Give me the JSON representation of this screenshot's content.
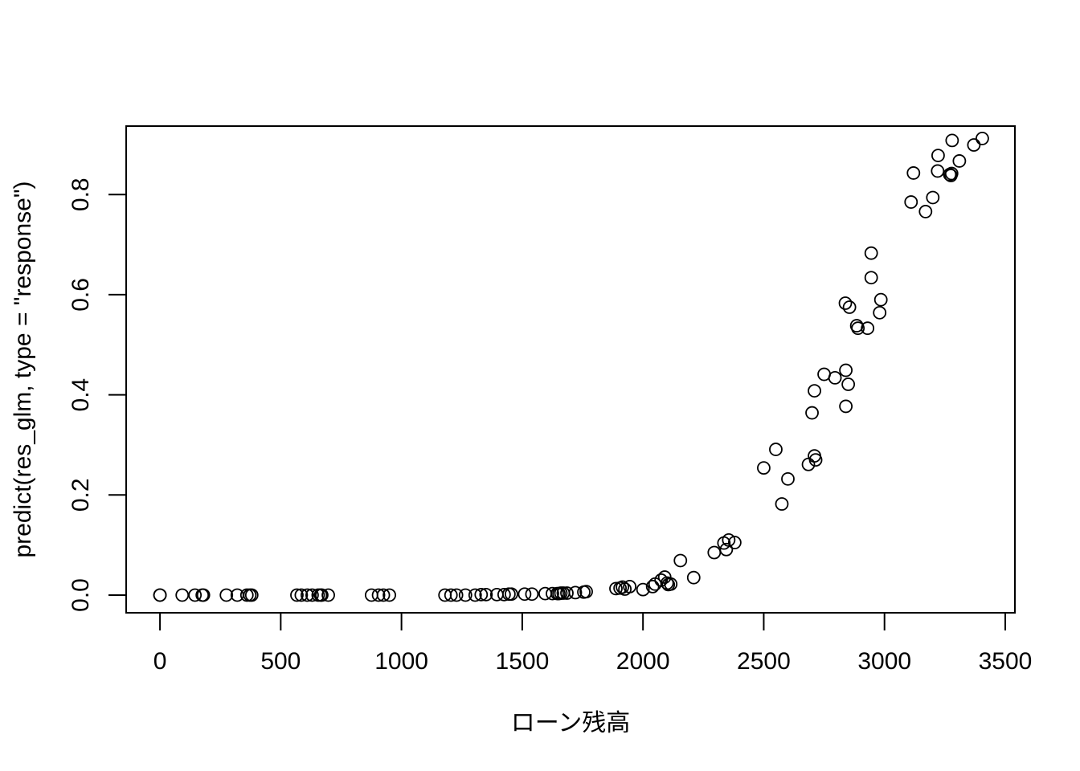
{
  "chart_data": {
    "type": "scatter",
    "title": "",
    "xlabel": "ローン残高",
    "ylabel": "predict(res_glm, type = \"response\")",
    "xlim": [
      -140,
      3540
    ],
    "ylim": [
      -0.0353,
      0.9367
    ],
    "xticks": [
      0,
      500,
      1000,
      1500,
      2000,
      2500,
      3000,
      3500
    ],
    "xtick_labels": [
      "0",
      "500",
      "1000",
      "1500",
      "2000",
      "2500",
      "3000",
      "3500"
    ],
    "yticks": [
      0.0,
      0.2,
      0.4,
      0.6,
      0.8
    ],
    "ytick_labels": [
      "0.0",
      "0.2",
      "0.4",
      "0.6",
      "0.8"
    ],
    "grid": false,
    "legend": "none",
    "marker": "open-circle",
    "color": "#000000",
    "points": [
      [
        0,
        0.0
      ],
      [
        0,
        0.0
      ],
      [
        92,
        0.0
      ],
      [
        145,
        0.0
      ],
      [
        175,
        0.0
      ],
      [
        180,
        0.0
      ],
      [
        275,
        0.0
      ],
      [
        320,
        0.0
      ],
      [
        360,
        0.0
      ],
      [
        372,
        0.0
      ],
      [
        380,
        0.0
      ],
      [
        567,
        0.0
      ],
      [
        585,
        0.0
      ],
      [
        610,
        0.0
      ],
      [
        630,
        0.0
      ],
      [
        655,
        0.0
      ],
      [
        665,
        0.0
      ],
      [
        670,
        0.0
      ],
      [
        697,
        0.0
      ],
      [
        876,
        0.0
      ],
      [
        905,
        0.0
      ],
      [
        925,
        0.0
      ],
      [
        950,
        0.0
      ],
      [
        1180,
        0.0
      ],
      [
        1205,
        0.0
      ],
      [
        1228,
        0.0
      ],
      [
        1265,
        0.0
      ],
      [
        1305,
        0.0
      ],
      [
        1330,
        0.001
      ],
      [
        1350,
        0.001
      ],
      [
        1395,
        0.001
      ],
      [
        1425,
        0.001
      ],
      [
        1445,
        0.002
      ],
      [
        1455,
        0.002
      ],
      [
        1510,
        0.002
      ],
      [
        1540,
        0.002
      ],
      [
        1595,
        0.003
      ],
      [
        1625,
        0.003
      ],
      [
        1645,
        0.003
      ],
      [
        1652,
        0.003
      ],
      [
        1660,
        0.004
      ],
      [
        1670,
        0.004
      ],
      [
        1685,
        0.004
      ],
      [
        1720,
        0.005
      ],
      [
        1755,
        0.006
      ],
      [
        1765,
        0.007
      ],
      [
        1888,
        0.013
      ],
      [
        1905,
        0.014
      ],
      [
        1915,
        0.016
      ],
      [
        1925,
        0.012
      ],
      [
        1945,
        0.017
      ],
      [
        2000,
        0.011
      ],
      [
        2040,
        0.017
      ],
      [
        2050,
        0.022
      ],
      [
        2075,
        0.03
      ],
      [
        2090,
        0.036
      ],
      [
        2100,
        0.024
      ],
      [
        2105,
        0.021
      ],
      [
        2115,
        0.022
      ],
      [
        2155,
        0.069
      ],
      [
        2210,
        0.035
      ],
      [
        2295,
        0.085
      ],
      [
        2335,
        0.104
      ],
      [
        2345,
        0.091
      ],
      [
        2355,
        0.11
      ],
      [
        2380,
        0.105
      ],
      [
        2500,
        0.254
      ],
      [
        2550,
        0.291
      ],
      [
        2575,
        0.182
      ],
      [
        2600,
        0.232
      ],
      [
        2685,
        0.261
      ],
      [
        2700,
        0.364
      ],
      [
        2710,
        0.278
      ],
      [
        2710,
        0.408
      ],
      [
        2715,
        0.27
      ],
      [
        2750,
        0.441
      ],
      [
        2795,
        0.434
      ],
      [
        2838,
        0.583
      ],
      [
        2840,
        0.449
      ],
      [
        2840,
        0.377
      ],
      [
        2850,
        0.421
      ],
      [
        2855,
        0.575
      ],
      [
        2885,
        0.538
      ],
      [
        2890,
        0.533
      ],
      [
        2930,
        0.533
      ],
      [
        2945,
        0.683
      ],
      [
        2945,
        0.634
      ],
      [
        2980,
        0.564
      ],
      [
        2985,
        0.59
      ],
      [
        3110,
        0.785
      ],
      [
        3120,
        0.843
      ],
      [
        3170,
        0.766
      ],
      [
        3200,
        0.794
      ],
      [
        3220,
        0.847
      ],
      [
        3222,
        0.878
      ],
      [
        3270,
        0.84
      ],
      [
        3275,
        0.838
      ],
      [
        3278,
        0.842
      ],
      [
        3280,
        0.908
      ],
      [
        3310,
        0.867
      ],
      [
        3370,
        0.899
      ],
      [
        3405,
        0.912
      ]
    ]
  }
}
